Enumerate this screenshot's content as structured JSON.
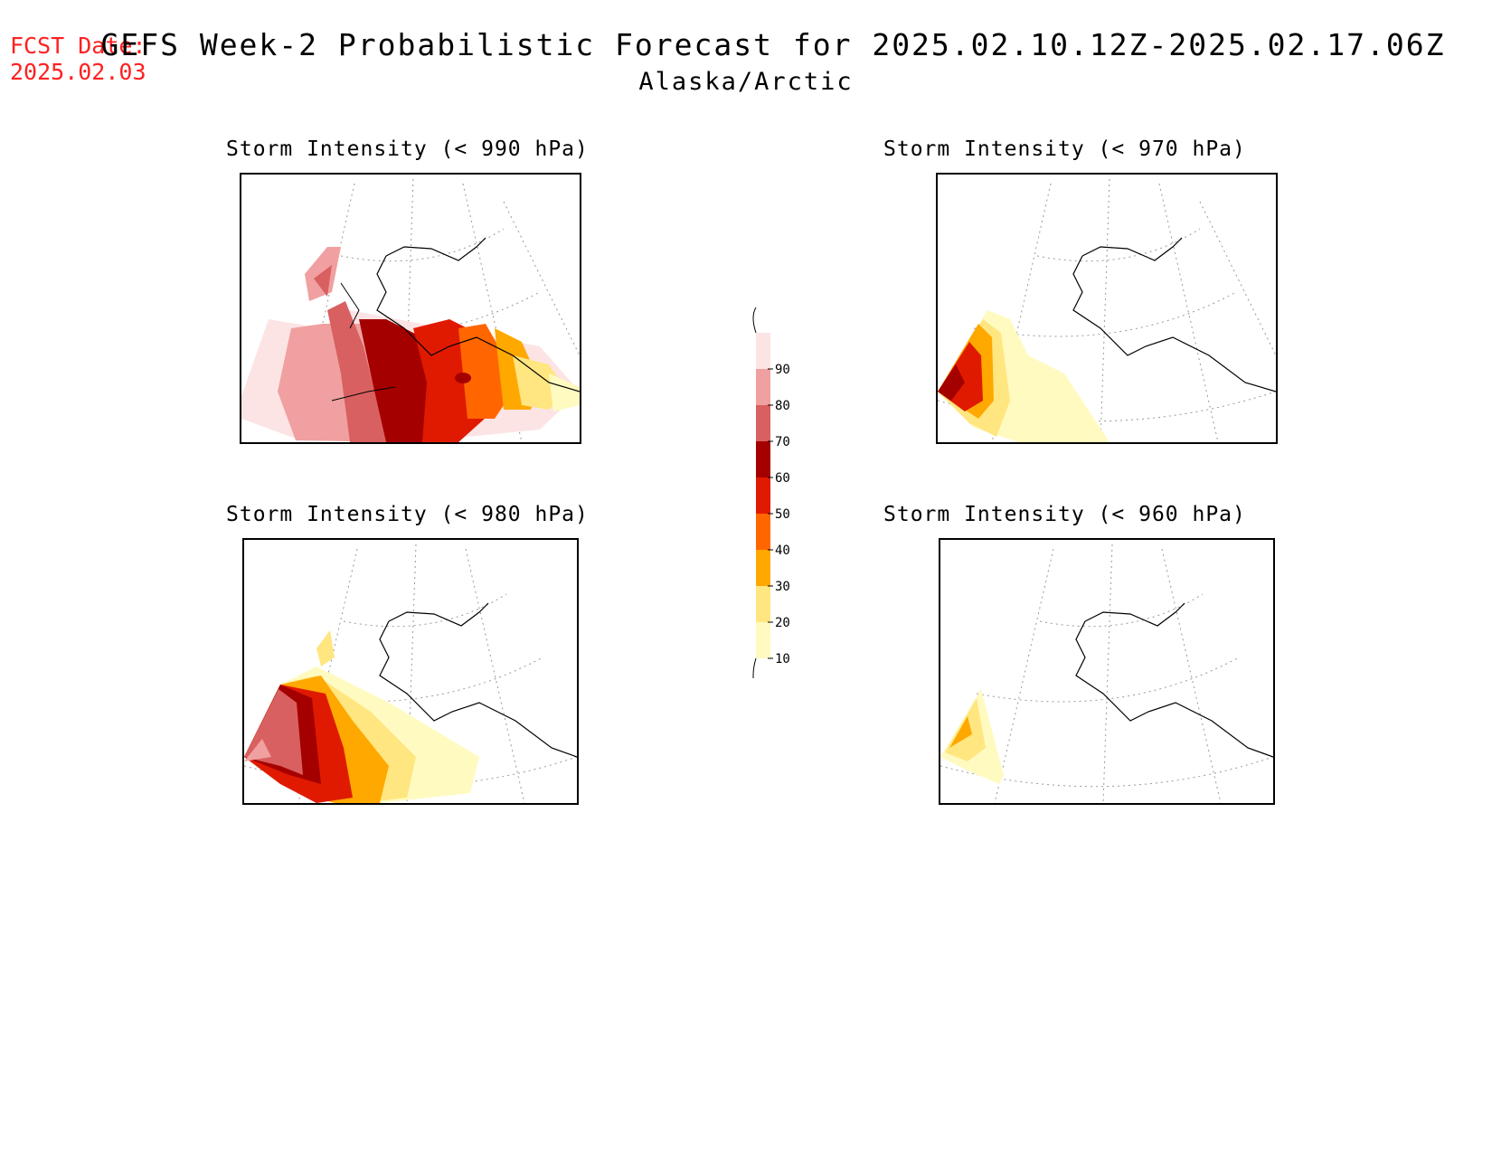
{
  "fcst_date": {
    "label": "FCST Date:",
    "value": "2025.02.03"
  },
  "title": {
    "main": "GEFS Week-2 Probabilistic Forecast for 2025.02.10.12Z-2025.02.17.06Z",
    "region": "Alaska/Arctic"
  },
  "panels": [
    {
      "id": "p990",
      "title": "Storm Intensity (< 990 hPa)"
    },
    {
      "id": "p970",
      "title": "Storm Intensity (< 970 hPa)"
    },
    {
      "id": "p980",
      "title": "Storm Intensity (< 980 hPa)"
    },
    {
      "id": "p960",
      "title": "Storm Intensity (< 960 hPa)"
    }
  ],
  "legend": {
    "levels": [
      "10",
      "20",
      "30",
      "40",
      "50",
      "60",
      "70",
      "80",
      "90"
    ],
    "colors": [
      "#fffac0",
      "#ffe680",
      "#ffa800",
      "#ff6600",
      "#e01a00",
      "#a50000",
      "#d96060",
      "#f0a0a0",
      "#fde4e4"
    ]
  }
}
